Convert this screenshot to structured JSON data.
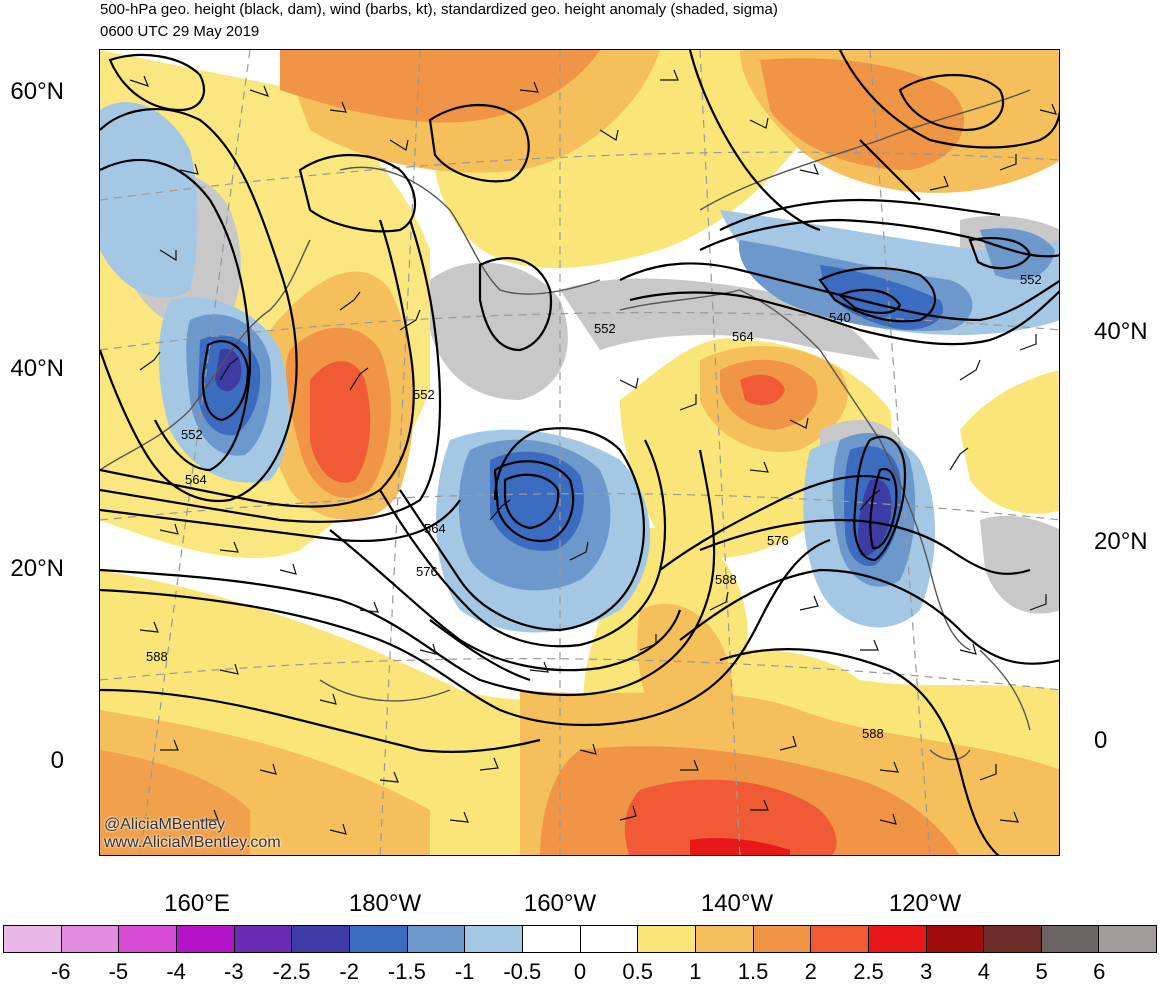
{
  "title": {
    "line1": "500-hPa geo. height (black, dam), wind (barbs, kt), standardized geo. height anomaly (shaded, sigma)",
    "line2": "0600 UTC 29 May 2019"
  },
  "credits": {
    "handle": "@AliciaMBentley",
    "website": "www.AliciaMBentley.com"
  },
  "lat_labels_left": [
    "60°N",
    "40°N",
    "20°N",
    "0"
  ],
  "lat_labels_right": [
    "40°N",
    "20°N",
    "0"
  ],
  "lon_labels": [
    "160°E",
    "180°W",
    "160°W",
    "140°W",
    "120°W"
  ],
  "contour_labels": [
    {
      "text": "552"
    },
    {
      "text": "564"
    },
    {
      "text": "552"
    },
    {
      "text": "552"
    },
    {
      "text": "564"
    },
    {
      "text": "576"
    },
    {
      "text": "564"
    },
    {
      "text": "540"
    },
    {
      "text": "552"
    },
    {
      "text": "576"
    },
    {
      "text": "588"
    },
    {
      "text": "588"
    },
    {
      "text": "588"
    }
  ],
  "colorbar": {
    "labels": [
      "-6",
      "-5",
      "-4",
      "-3",
      "-2.5",
      "-2",
      "-1.5",
      "-1",
      "-0.5",
      "0",
      "0.5",
      "1",
      "1.5",
      "2",
      "2.5",
      "3",
      "4",
      "5",
      "6"
    ],
    "colors": [
      "#eab8e8",
      "#e48ce2",
      "#d84cd6",
      "#b414c8",
      "#6a2cb4",
      "#3c3ca4",
      "#3c6cc0",
      "#6c98cc",
      "#a4c8e4",
      "#ffffff",
      "#ffffff",
      "#fae678",
      "#f5c05c",
      "#f09446",
      "#f05a34",
      "#e81818",
      "#a00c0c",
      "#6c2c28",
      "#6c6464",
      "#a49c9c"
    ]
  }
}
